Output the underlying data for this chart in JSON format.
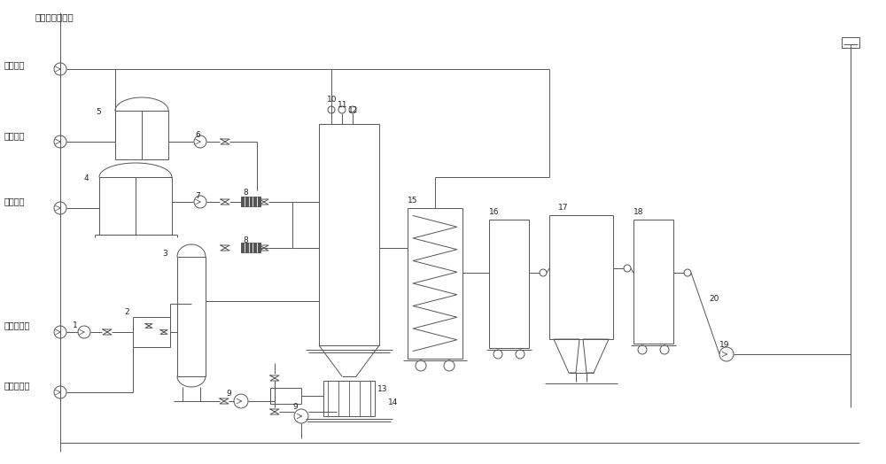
{
  "bg_color": "#ffffff",
  "line_color": "#555555",
  "text_color": "#222222",
  "labels": {
    "main_boundary": "主工艺系统界区",
    "low_pressure_steam": "低压蒸汽",
    "process_residue": "工艺釜残",
    "process_waste_gas": "工艺废气",
    "dma_liquid": "二甲胺液液",
    "dma_solution": "二甲胺淡液"
  },
  "figsize": [
    10.0,
    5.24
  ],
  "dpi": 100
}
